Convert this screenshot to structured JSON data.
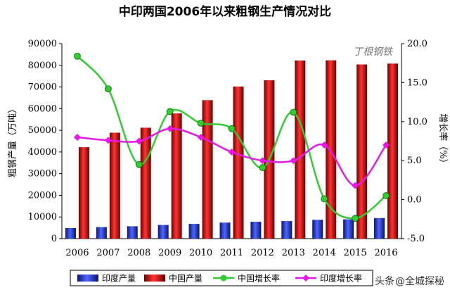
{
  "chart_data": {
    "type": "bar",
    "title": "中印两国2006年以来粗钢生产情况对比",
    "categories": [
      "2006",
      "2007",
      "2008",
      "2009",
      "2010",
      "2011",
      "2012",
      "2013",
      "2014",
      "2015",
      "2016"
    ],
    "ylabel_left": "粗钢产量（万吨）",
    "ylabel_right": "增长率（%）",
    "ylim_left": [
      0,
      90000
    ],
    "yticks_left": [
      "0",
      "10000",
      "20000",
      "30000",
      "40000",
      "50000",
      "60000",
      "70000",
      "80000",
      "90000"
    ],
    "ylim_right": [
      -5,
      20
    ],
    "yticks_right": [
      "-5.0",
      "0.0",
      "5.0",
      "10.0",
      "15.0",
      "20.0"
    ],
    "grid": false,
    "legend_position": "bottom",
    "series": [
      {
        "name": "印度产量",
        "kind": "bar",
        "axis": "left",
        "color": "#1f2fbf",
        "values": [
          4900,
          5300,
          5700,
          6300,
          6800,
          7400,
          7800,
          8100,
          8700,
          8900,
          9500
        ]
      },
      {
        "name": "中国产量",
        "kind": "bar",
        "axis": "left",
        "color": "#cc0000",
        "values": [
          42200,
          48900,
          51200,
          57800,
          63900,
          70200,
          73100,
          82200,
          82300,
          80400,
          80800
        ]
      },
      {
        "name": "中国增长率",
        "kind": "line",
        "axis": "right",
        "color": "#33cc33",
        "values": [
          18.4,
          14.2,
          4.5,
          11.3,
          9.8,
          9.1,
          4.1,
          11.2,
          0.1,
          -2.4,
          0.5
        ]
      },
      {
        "name": "印度增长率",
        "kind": "line",
        "axis": "right",
        "color": "#e619e6",
        "values": [
          8.0,
          7.6,
          7.5,
          9.1,
          8.0,
          6.1,
          5.0,
          5.0,
          7.0,
          1.8,
          7.0
        ]
      }
    ]
  },
  "stamp_text": "丁根钢铁",
  "watermark": {
    "prefix": "头条",
    "handle": "@全城探秘"
  }
}
